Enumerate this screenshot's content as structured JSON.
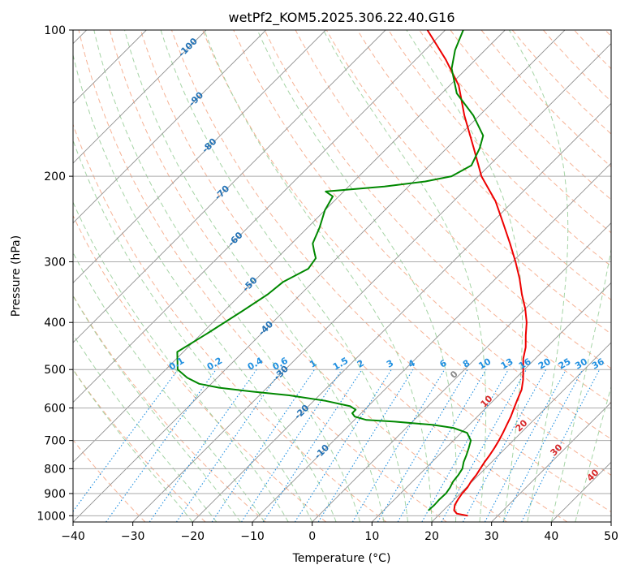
{
  "chart_data": {
    "type": "skew-t",
    "title": "wetPf2_KOM5.2025.306.22.40.G16",
    "xlabel": "Temperature (°C)",
    "ylabel": "Pressure (hPa)",
    "xlim": [
      -40,
      50
    ],
    "ylim_hpa": [
      1030,
      100
    ],
    "log_pressure_axis": true,
    "grid": true,
    "x_ticks": [
      "−40",
      "−30",
      "−20",
      "−10",
      "0",
      "10",
      "20",
      "30",
      "40",
      "50"
    ],
    "y_ticks": [
      {
        "p": 100,
        "label": "100"
      },
      {
        "p": 200,
        "label": "200"
      },
      {
        "p": 300,
        "label": "300"
      },
      {
        "p": 400,
        "label": "400"
      },
      {
        "p": 500,
        "label": "500"
      },
      {
        "p": 600,
        "label": "600"
      },
      {
        "p": 700,
        "label": "700"
      },
      {
        "p": 800,
        "label": "800"
      },
      {
        "p": 900,
        "label": "900"
      },
      {
        "p": 1000,
        "label": "1000"
      }
    ],
    "colors": {
      "temperature": "#ee0000",
      "dewpoint": "#008800",
      "dry_adiabat": "#f4a582",
      "moist_adiabat": "#8fc98f",
      "mixing_ratio": "#1f8fe0",
      "isotherm": "#909090",
      "isotherm_label": "#2171b5",
      "warm_label": "#d62728",
      "zero_label": "#888888"
    },
    "series": [
      {
        "name": "temperature",
        "points": [
          [
            1000,
            25.0
          ],
          [
            990,
            22.8
          ],
          [
            975,
            21.8
          ],
          [
            950,
            21.0
          ],
          [
            925,
            20.6
          ],
          [
            900,
            20.3
          ],
          [
            875,
            20.2
          ],
          [
            850,
            19.8
          ],
          [
            825,
            19.6
          ],
          [
            800,
            19.2
          ],
          [
            775,
            18.8
          ],
          [
            750,
            18.5
          ],
          [
            725,
            18.1
          ],
          [
            700,
            17.6
          ],
          [
            675,
            17.0
          ],
          [
            650,
            16.3
          ],
          [
            625,
            15.6
          ],
          [
            600,
            14.7
          ],
          [
            575,
            13.8
          ],
          [
            550,
            12.9
          ],
          [
            525,
            11.5
          ],
          [
            500,
            9.8
          ],
          [
            475,
            8.0
          ],
          [
            450,
            6.5
          ],
          [
            425,
            4.5
          ],
          [
            400,
            2.5
          ],
          [
            375,
            0.0
          ],
          [
            350,
            -3.0
          ],
          [
            325,
            -6.0
          ],
          [
            300,
            -9.5
          ],
          [
            275,
            -13.5
          ],
          [
            250,
            -18.0
          ],
          [
            225,
            -23.0
          ],
          [
            200,
            -29.5
          ],
          [
            175,
            -35.5
          ],
          [
            150,
            -42.5
          ],
          [
            130,
            -48.5
          ],
          [
            115,
            -55.0
          ],
          [
            100,
            -63.0
          ]
        ]
      },
      {
        "name": "dewpoint",
        "points": [
          [
            975,
            17.5
          ],
          [
            950,
            17.6
          ],
          [
            925,
            17.5
          ],
          [
            900,
            17.6
          ],
          [
            875,
            17.3
          ],
          [
            850,
            16.8
          ],
          [
            825,
            16.6
          ],
          [
            800,
            16.2
          ],
          [
            775,
            15.3
          ],
          [
            750,
            14.6
          ],
          [
            725,
            13.8
          ],
          [
            700,
            12.9
          ],
          [
            675,
            11.0
          ],
          [
            660,
            8.0
          ],
          [
            650,
            4.0
          ],
          [
            640,
            -3.0
          ],
          [
            635,
            -8.0
          ],
          [
            625,
            -10.5
          ],
          [
            615,
            -11.5
          ],
          [
            605,
            -11.5
          ],
          [
            595,
            -13.0
          ],
          [
            580,
            -18.0
          ],
          [
            565,
            -25.0
          ],
          [
            555,
            -32.0
          ],
          [
            545,
            -38.0
          ],
          [
            535,
            -42.0
          ],
          [
            520,
            -45.0
          ],
          [
            500,
            -48.0
          ],
          [
            460,
            -51.0
          ],
          [
            420,
            -49.0
          ],
          [
            380,
            -47.0
          ],
          [
            350,
            -45.5
          ],
          [
            330,
            -45.0
          ],
          [
            310,
            -43.0
          ],
          [
            295,
            -43.5
          ],
          [
            285,
            -45.0
          ],
          [
            275,
            -46.5
          ],
          [
            255,
            -48.0
          ],
          [
            235,
            -50.0
          ],
          [
            220,
            -51.0
          ],
          [
            215,
            -53.0
          ],
          [
            210,
            -44.0
          ],
          [
            205,
            -38.0
          ],
          [
            200,
            -34.5
          ],
          [
            190,
            -33.0
          ],
          [
            175,
            -34.5
          ],
          [
            165,
            -36.0
          ],
          [
            150,
            -41.0
          ],
          [
            135,
            -47.5
          ],
          [
            120,
            -52.5
          ],
          [
            110,
            -55.0
          ],
          [
            100,
            -57.0
          ]
        ]
      }
    ],
    "isotherm_labels": [
      "-100",
      "-90",
      "-80",
      "-70",
      "-60",
      "-50",
      "-40",
      "-30",
      "-20",
      "-10"
    ],
    "zero_label": "0",
    "warm_labels": [
      "10",
      "20",
      "30",
      "40"
    ],
    "mixing_ratio_labels": [
      "0.1",
      "0.2",
      "0.4",
      "0.6",
      "1",
      "1.5",
      "2",
      "3",
      "4",
      "6",
      "8",
      "10",
      "13",
      "16",
      "20",
      "25",
      "30",
      "36"
    ],
    "mixing_ratio_values_gkg": [
      0.1,
      0.2,
      0.4,
      0.6,
      1,
      1.5,
      2,
      3,
      4,
      6,
      8,
      10,
      13,
      16,
      20,
      25,
      30,
      36
    ]
  }
}
